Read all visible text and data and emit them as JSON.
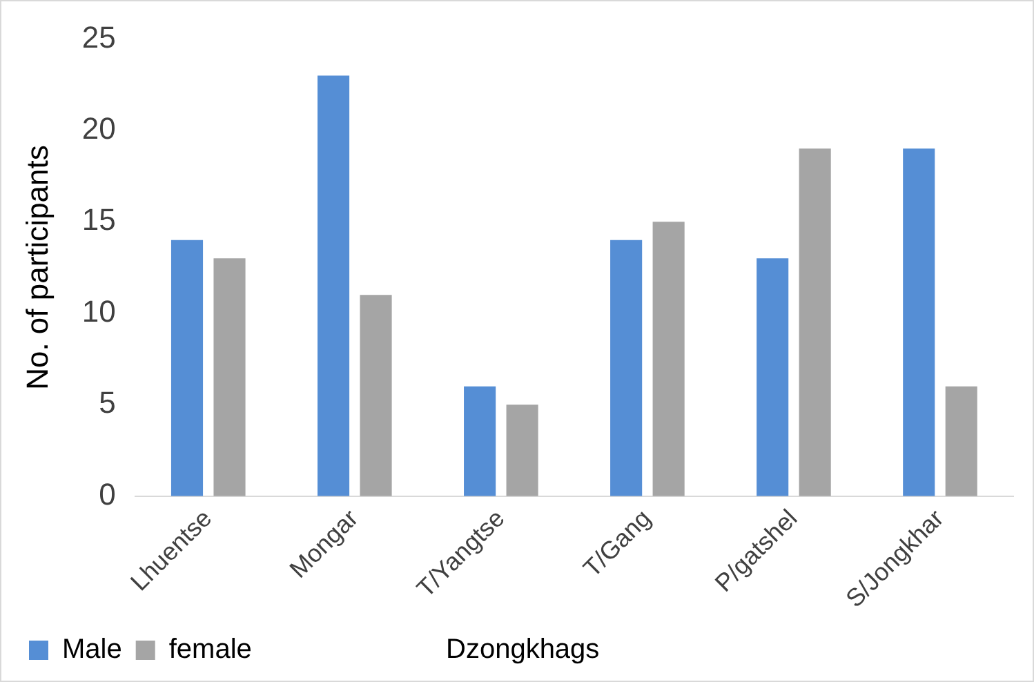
{
  "chart_data": {
    "type": "bar",
    "xlabel": "Dzongkhags",
    "ylabel": "No. of participants",
    "categories": [
      "Lhuentse",
      "Mongar",
      "T/Yangtse",
      "T/Gang",
      "P/gatshel",
      "S/Jongkhar"
    ],
    "series": [
      {
        "name": "Male",
        "color": "#558ed5",
        "values": [
          14,
          23,
          6,
          14,
          13,
          19
        ]
      },
      {
        "name": "female",
        "color": "#a5a5a5",
        "values": [
          13,
          11,
          5,
          15,
          19,
          6
        ]
      }
    ],
    "ylim": [
      0,
      25
    ],
    "yticks": [
      0,
      5,
      10,
      15,
      20,
      25
    ],
    "grid": false,
    "legend": "bottom"
  }
}
